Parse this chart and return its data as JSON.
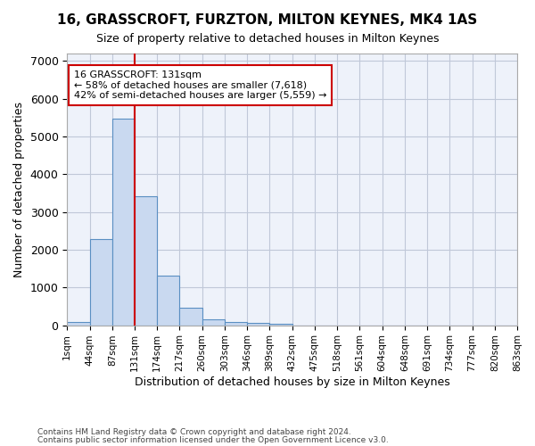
{
  "title1": "16, GRASSCROFT, FURZTON, MILTON KEYNES, MK4 1AS",
  "title2": "Size of property relative to detached houses in Milton Keynes",
  "xlabel": "Distribution of detached houses by size in Milton Keynes",
  "ylabel": "Number of detached properties",
  "footnote1": "Contains HM Land Registry data © Crown copyright and database right 2024.",
  "footnote2": "Contains public sector information licensed under the Open Government Licence v3.0.",
  "bin_labels": [
    "1sqm",
    "44sqm",
    "87sqm",
    "131sqm",
    "174sqm",
    "217sqm",
    "260sqm",
    "303sqm",
    "346sqm",
    "389sqm",
    "432sqm",
    "475sqm",
    "518sqm",
    "561sqm",
    "604sqm",
    "648sqm",
    "691sqm",
    "734sqm",
    "777sqm",
    "820sqm",
    "863sqm"
  ],
  "bar_values": [
    80,
    2280,
    5480,
    3420,
    1310,
    460,
    155,
    90,
    60,
    35,
    0,
    0,
    0,
    0,
    0,
    0,
    0,
    0,
    0,
    0
  ],
  "bar_color": "#c9d9f0",
  "bar_edge_color": "#5a8fc2",
  "annotation_text1": "16 GRASSCROFT: 131sqm",
  "annotation_text2": "← 58% of detached houses are smaller (7,618)",
  "annotation_text3": "42% of semi-detached houses are larger (5,559) →",
  "annotation_box_color": "#ffffff",
  "annotation_edge_color": "#cc0000",
  "vline_color": "#cc0000",
  "ylim": [
    0,
    7200
  ],
  "yticks": [
    0,
    1000,
    2000,
    3000,
    4000,
    5000,
    6000,
    7000
  ],
  "grid_color": "#c0c8d8",
  "background_color": "#eef2fa"
}
